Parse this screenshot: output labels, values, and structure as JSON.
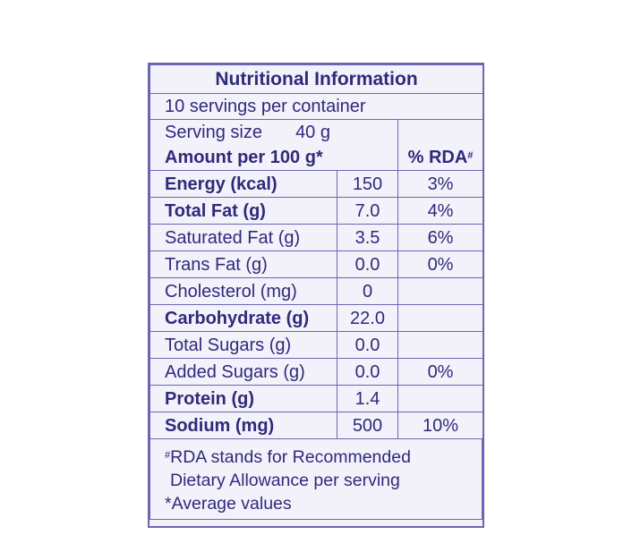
{
  "title": "Nutritional Information",
  "servings_per_container": "10 servings per container",
  "serving_size": {
    "label": "Serving size",
    "value": "40 g"
  },
  "header": {
    "amount_label": "Amount per 100 g*",
    "rda_label": "% RDA",
    "rda_mark": "#"
  },
  "rows": [
    {
      "name": "Energy (kcal)",
      "amount": "150",
      "rda": "3%",
      "bold": true
    },
    {
      "name": "Total Fat (g)",
      "amount": "7.0",
      "rda": "4%",
      "bold": true
    },
    {
      "name": "Saturated Fat (g)",
      "amount": "3.5",
      "rda": "6%",
      "bold": false
    },
    {
      "name": "Trans Fat (g)",
      "amount": "0.0",
      "rda": "0%",
      "bold": false
    },
    {
      "name": "Cholesterol (mg)",
      "amount": "0",
      "rda": "",
      "bold": false
    },
    {
      "name": "Carbohydrate (g)",
      "amount": "22.0",
      "rda": "",
      "bold": true
    },
    {
      "name": "Total Sugars (g)",
      "amount": "0.0",
      "rda": "",
      "bold": false
    },
    {
      "name": "Added Sugars (g)",
      "amount": "0.0",
      "rda": "0%",
      "bold": false
    },
    {
      "name": "Protein (g)",
      "amount": "1.4",
      "rda": "",
      "bold": true
    },
    {
      "name": "Sodium (mg)",
      "amount": "500",
      "rda": "10%",
      "bold": true
    }
  ],
  "footnote": {
    "mark": "#",
    "line1": "RDA stands for Recommended",
    "line2": "Dietary Allowance per serving",
    "line3": "*Average values"
  },
  "colors": {
    "text": "#2f2a7a",
    "border": "#6b66b4",
    "background": "#f3f2fb"
  }
}
